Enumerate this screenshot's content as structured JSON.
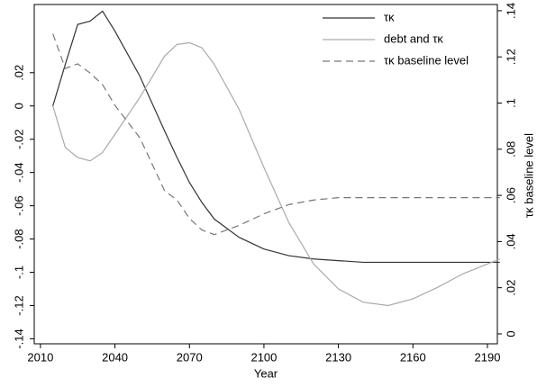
{
  "chart_data": {
    "type": "line",
    "x_label": "Year",
    "y2_label": "τκ baseline level",
    "x": [
      2015,
      2020,
      2025,
      2030,
      2035,
      2040,
      2050,
      2060,
      2065,
      2070,
      2075,
      2080,
      2090,
      2100,
      2110,
      2120,
      2130,
      2140,
      2150,
      2160,
      2170,
      2180,
      2190,
      2195
    ],
    "series": [
      {
        "name": "τκ",
        "color": "#333333",
        "style": "solid",
        "axis": "y",
        "values": [
          0,
          0.025,
          0.049,
          0.051,
          0.057,
          0.045,
          0.018,
          -0.015,
          -0.031,
          -0.046,
          -0.058,
          -0.068,
          -0.079,
          -0.086,
          -0.09,
          -0.092,
          -0.093,
          -0.094,
          -0.094,
          -0.094,
          -0.094,
          -0.094,
          -0.094,
          -0.094
        ]
      },
      {
        "name": "debt and τκ",
        "color": "#aaaaaa",
        "style": "solid",
        "axis": "y",
        "values": [
          0,
          -0.025,
          -0.031,
          -0.033,
          -0.028,
          -0.017,
          0.005,
          0.03,
          0.037,
          0.038,
          0.035,
          0.025,
          -0.002,
          -0.037,
          -0.07,
          -0.095,
          -0.11,
          -0.118,
          -0.12,
          -0.116,
          -0.109,
          -0.101,
          -0.095,
          -0.092
        ]
      },
      {
        "name": "τκ baseline level",
        "color": "#777777",
        "style": "dashed",
        "axis": "y2",
        "values": [
          0.13,
          0.115,
          0.117,
          0.113,
          0.108,
          0.099,
          0.085,
          0.062,
          0.058,
          0.05,
          0.045,
          0.043,
          0.047,
          0.052,
          0.056,
          0.058,
          0.059,
          0.059,
          0.059,
          0.059,
          0.059,
          0.059,
          0.059,
          0.059
        ]
      }
    ],
    "xlim": [
      2007.5,
      2194
    ],
    "xticks": [
      2010,
      2040,
      2070,
      2100,
      2130,
      2160,
      2190
    ],
    "ylim": [
      -0.143,
      0.061
    ],
    "yticks": [
      {
        "value": -0.14,
        "label": "-.14"
      },
      {
        "value": -0.12,
        "label": "-.12"
      },
      {
        "value": -0.1,
        "label": "-.1"
      },
      {
        "value": -0.08,
        "label": "-.08"
      },
      {
        "value": -0.06,
        "label": "-.06"
      },
      {
        "value": -0.04,
        "label": "-.04"
      },
      {
        "value": -0.02,
        "label": "-.02"
      },
      0,
      {
        "value": 0.02,
        "label": ".02"
      }
    ],
    "y2lim": [
      -0.0043,
      0.1427
    ],
    "y2ticks": [
      0,
      {
        "value": 0.02,
        "label": ".02"
      },
      {
        "value": 0.04,
        "label": ".04"
      },
      {
        "value": 0.06,
        "label": ".06"
      },
      {
        "value": 0.08,
        "label": ".08"
      },
      {
        "value": 0.1,
        "label": ".1"
      },
      {
        "value": 0.12,
        "label": ".12"
      },
      {
        "value": 0.14,
        "label": ".14"
      }
    ],
    "legend": "top-right",
    "grid": false
  }
}
